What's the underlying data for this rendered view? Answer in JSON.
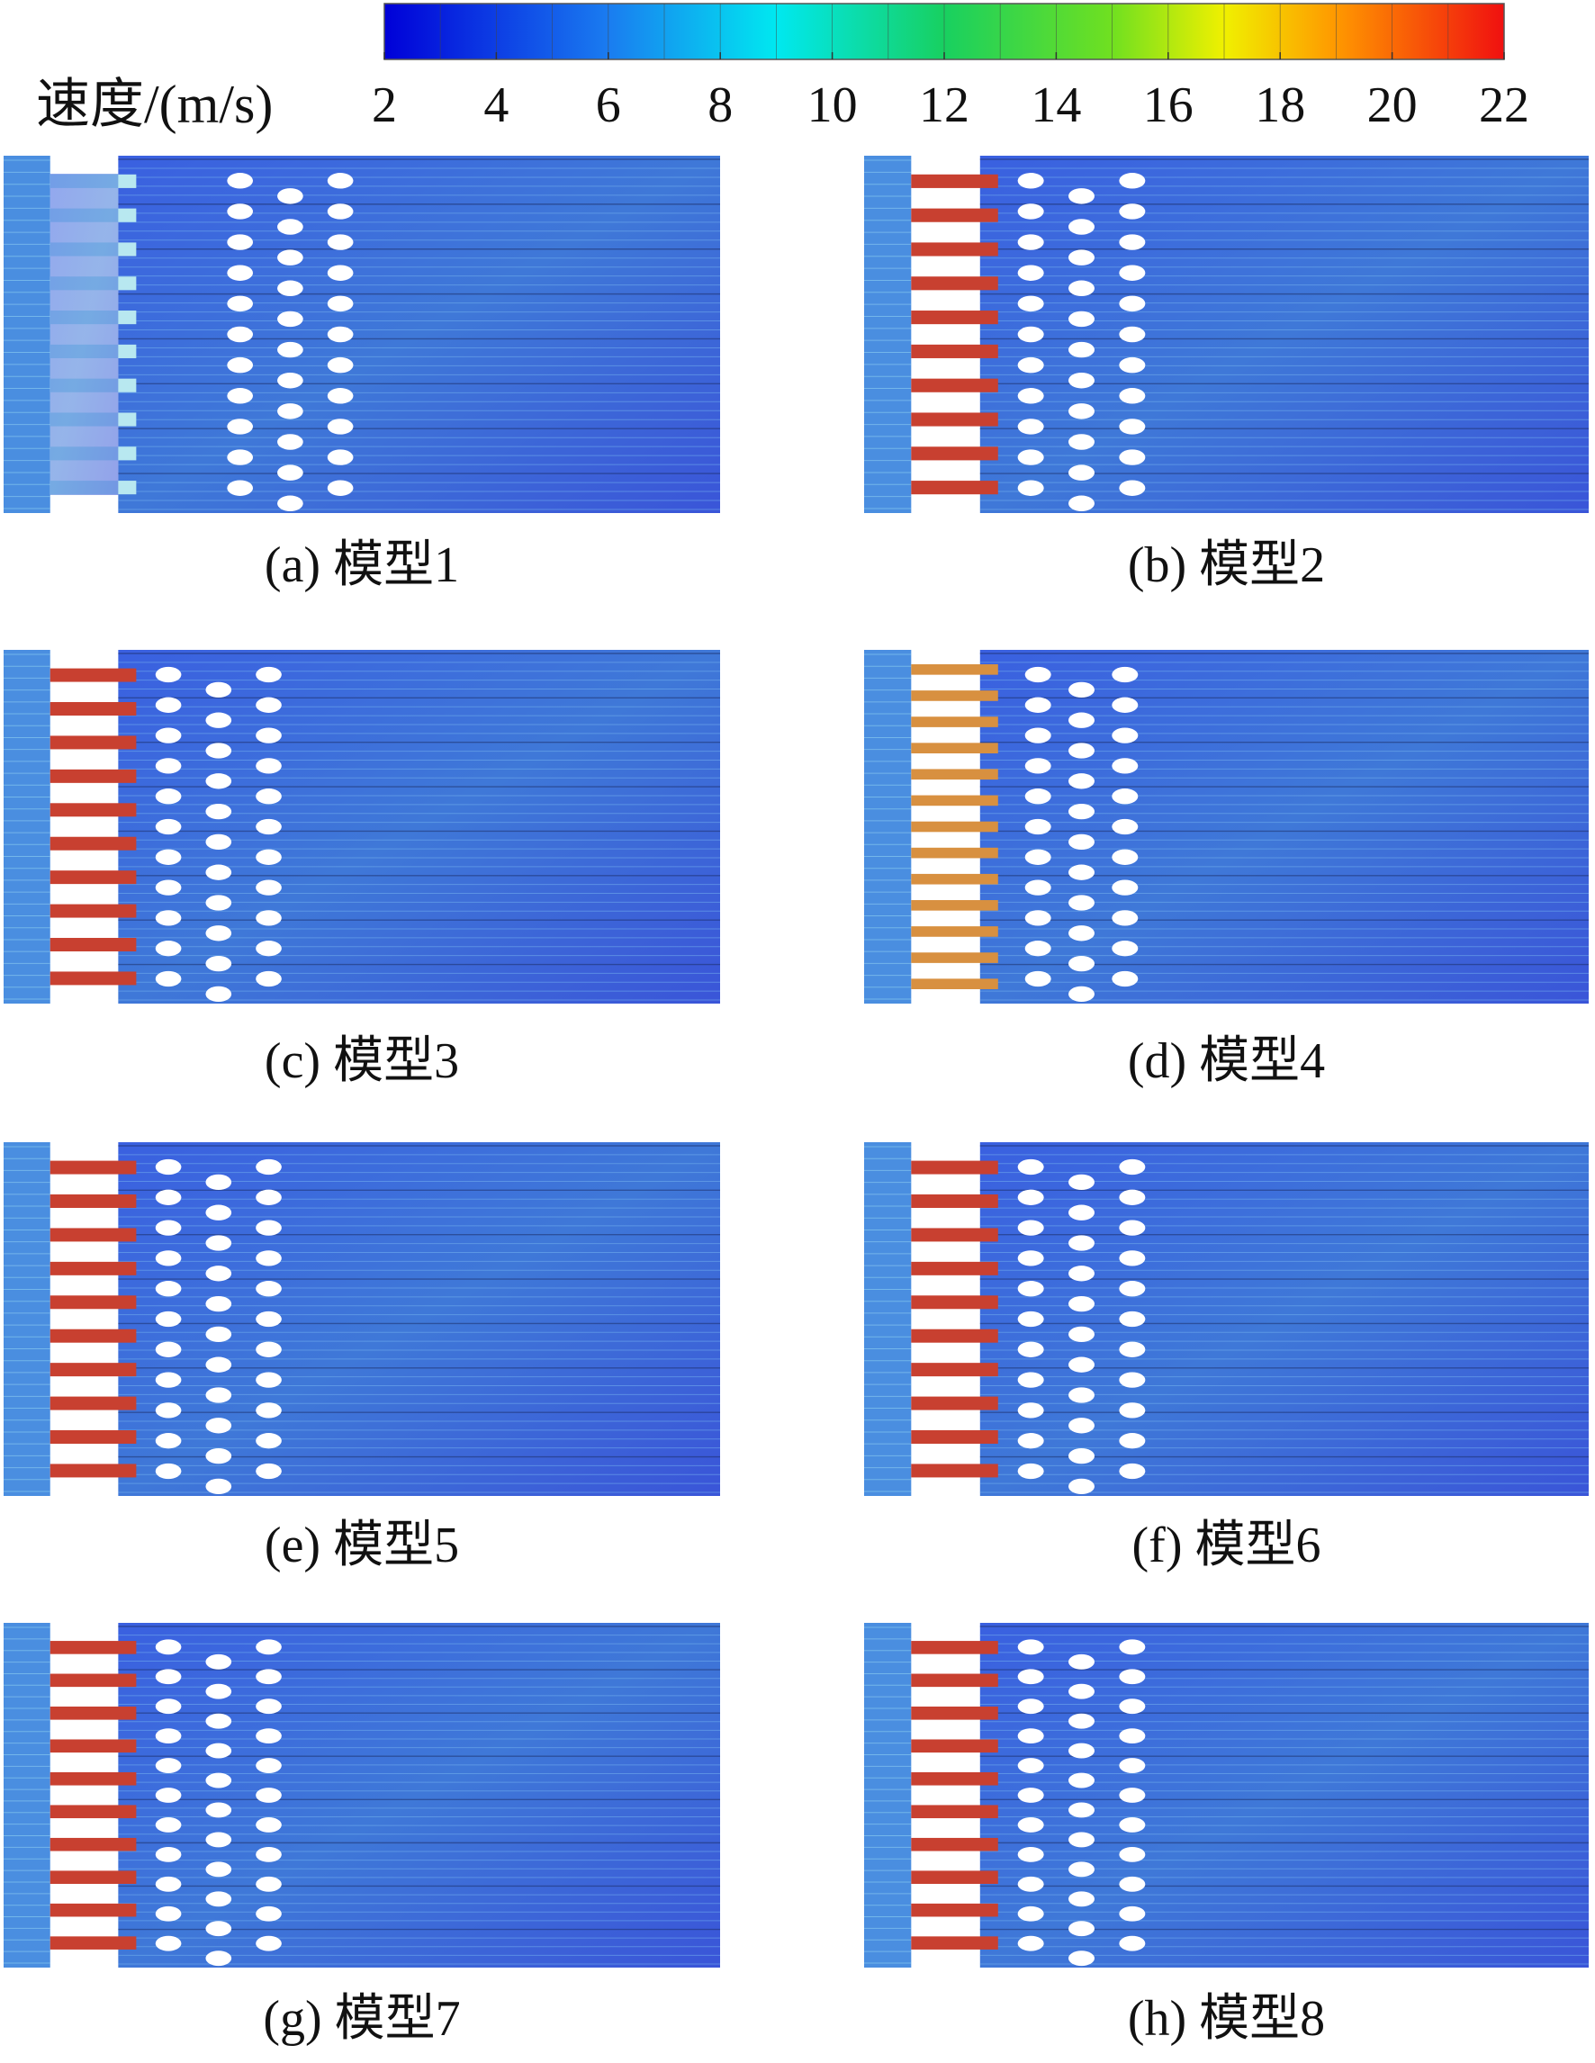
{
  "colorbar": {
    "label": "速度/(m/s)",
    "range": [
      2,
      22
    ],
    "ticks": [
      2,
      4,
      6,
      8,
      10,
      12,
      14,
      16,
      18,
      20,
      22
    ]
  },
  "panels": [
    {
      "caption": "(a) 模型1"
    },
    {
      "caption": "(b) 模型2"
    },
    {
      "caption": "(c) 模型3"
    },
    {
      "caption": "(d) 模型4"
    },
    {
      "caption": "(e) 模型5"
    },
    {
      "caption": "(f) 模型6"
    },
    {
      "caption": "(g) 模型7"
    },
    {
      "caption": "(h) 模型8"
    }
  ]
}
